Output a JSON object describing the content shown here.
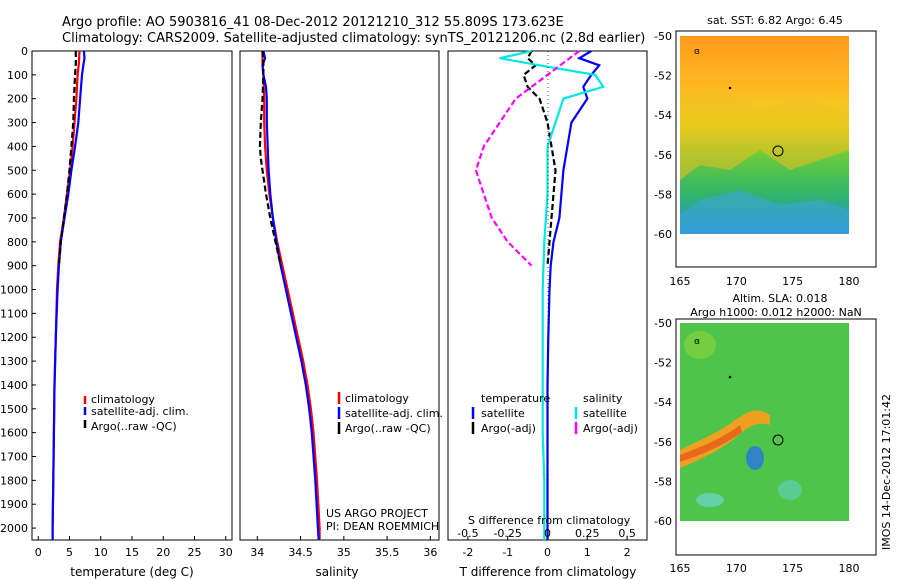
{
  "title": {
    "line1": "Argo profile: AO 5903816_41 08-Dec-2012 20121210_312 55.809S 173.623E",
    "line2": "Climatology: CARS2009. Satellite-adjusted climatology: synTS_20121206.nc (2.8d earlier)"
  },
  "credit": [
    "US ARGO PROJECT",
    "PI: DEAN ROEMMICH"
  ],
  "footer_stamp": "IMOS 14-Dec-2012 17:01:42",
  "colors": {
    "climatology": "#ff0000",
    "satellite": "#0000ff",
    "argo": "#000000",
    "sal_satellite": "#00e5e5",
    "sal_argo": "#ff00ff"
  },
  "chart_data": [
    {
      "type": "line",
      "xlabel": "temperature (deg C)",
      "ylabel": "",
      "xlim": [
        -1,
        31
      ],
      "ylim": [
        2050,
        0
      ],
      "xticks": [
        "0",
        "5",
        "10",
        "15",
        "20",
        "25",
        "30"
      ],
      "yticks": [
        "0",
        "100",
        "200",
        "300",
        "400",
        "500",
        "600",
        "700",
        "800",
        "900",
        "1000",
        "1100",
        "1200",
        "1300",
        "1400",
        "1500",
        "1600",
        "1700",
        "1800",
        "1900",
        "2000"
      ],
      "legend_position": "lower-center",
      "series": [
        {
          "name": "climatology",
          "style": "solid",
          "depth": [
            0,
            50,
            100,
            200,
            300,
            400,
            500,
            600,
            700,
            800,
            900,
            1000,
            1200,
            1400,
            1600,
            1800,
            2000,
            2050
          ],
          "values": [
            6.6,
            6.5,
            6.3,
            6.1,
            5.8,
            5.5,
            5.1,
            4.6,
            4.1,
            3.5,
            3.2,
            3.0,
            2.8,
            2.6,
            2.5,
            2.4,
            2.3,
            2.3
          ]
        },
        {
          "name": "satellite-adj. clim.",
          "style": "solid",
          "depth": [
            0,
            30,
            60,
            100,
            200,
            300,
            400,
            500,
            600,
            700,
            800,
            900,
            1000,
            1200,
            1400,
            1600,
            1800,
            2000,
            2050
          ],
          "values": [
            7.3,
            7.4,
            7.2,
            7.0,
            6.7,
            6.4,
            5.9,
            5.3,
            4.8,
            4.2,
            3.6,
            3.3,
            3.1,
            2.8,
            2.6,
            2.5,
            2.4,
            2.3,
            2.3
          ]
        },
        {
          "name": "Argo(..raw -QC)",
          "style": "dashed",
          "depth": [
            0,
            50,
            100,
            200,
            300,
            400,
            500,
            600,
            700,
            800,
            900
          ],
          "values": [
            6.0,
            6.0,
            5.9,
            5.7,
            5.6,
            5.3,
            5.0,
            4.6,
            4.1,
            3.6,
            3.3
          ]
        }
      ]
    },
    {
      "type": "line",
      "xlabel": "salinity",
      "xlim": [
        33.8,
        36.1
      ],
      "ylim": [
        2050,
        0
      ],
      "xticks": [
        "34",
        "34.5",
        "35",
        "35.5",
        "36"
      ],
      "legend_position": "lower-center",
      "series": [
        {
          "name": "climatology",
          "style": "solid",
          "depth": [
            0,
            50,
            100,
            200,
            300,
            400,
            500,
            600,
            700,
            800,
            900,
            1000,
            1100,
            1200,
            1300,
            1400,
            1500,
            1600,
            1800,
            2000,
            2050
          ],
          "values": [
            34.06,
            34.06,
            34.07,
            34.08,
            34.08,
            34.09,
            34.11,
            34.14,
            34.18,
            34.23,
            34.29,
            34.35,
            34.41,
            34.47,
            34.53,
            34.58,
            34.62,
            34.65,
            34.69,
            34.72,
            34.72
          ]
        },
        {
          "name": "satellite-adj. clim.",
          "style": "solid",
          "depth": [
            0,
            30,
            60,
            100,
            150,
            200,
            300,
            400,
            500,
            600,
            700,
            800,
            900,
            1000,
            1100,
            1200,
            1300,
            1400,
            1500,
            1600,
            1800,
            2000,
            2050
          ],
          "values": [
            34.07,
            34.09,
            34.06,
            34.07,
            34.1,
            34.11,
            34.11,
            34.12,
            34.13,
            34.15,
            34.18,
            34.22,
            34.27,
            34.33,
            34.39,
            34.45,
            34.51,
            34.56,
            34.6,
            34.63,
            34.67,
            34.7,
            34.71
          ]
        },
        {
          "name": "Argo(..raw -QC)",
          "style": "dashed",
          "depth": [
            0,
            50,
            100,
            200,
            300,
            400,
            450,
            500,
            600,
            700,
            800,
            900
          ],
          "values": [
            34.06,
            34.07,
            34.07,
            34.06,
            34.04,
            34.03,
            34.04,
            34.06,
            34.1,
            34.15,
            34.21,
            34.27
          ]
        }
      ]
    },
    {
      "type": "line",
      "xlabel": "T difference from climatology",
      "xlabel_secondary": "S difference from climatology",
      "xlim": [
        -2.5,
        2.5
      ],
      "ylim": [
        2050,
        0
      ],
      "xticks": [
        "-2",
        "-1",
        "0",
        "1",
        "2"
      ],
      "xticks_secondary": [
        "-0.5",
        "-0.25",
        "0",
        "0.25",
        "0.5"
      ],
      "legend_position": "lower-center",
      "legend": {
        "temperature": "temperature",
        "salinity": "salinity",
        "sat_t": "satellite",
        "argo_t": "Argo(-adj)",
        "sat_s": "satellite",
        "argo_s": "Argo(-adj)"
      },
      "series": [
        {
          "name": "temperature satellite",
          "style": "solid",
          "depth": [
            0,
            30,
            60,
            100,
            150,
            200,
            300,
            400,
            500,
            600,
            700,
            800,
            900,
            1000,
            1200,
            1400,
            1600,
            1800,
            2000,
            2050
          ],
          "values": [
            1.1,
            0.8,
            1.3,
            1.1,
            0.9,
            1.0,
            0.6,
            0.5,
            0.4,
            0.35,
            0.3,
            0.15,
            0.08,
            0.05,
            0.02,
            0.0,
            0.0,
            0.0,
            0.0,
            0.0
          ]
        },
        {
          "name": "temperature Argo(-adj)",
          "style": "dashed",
          "depth": [
            0,
            30,
            60,
            100,
            150,
            200,
            250,
            300,
            400,
            500,
            600,
            700,
            800,
            900
          ],
          "values": [
            -0.4,
            -0.5,
            -0.3,
            -0.6,
            -0.5,
            -0.2,
            -0.1,
            0.0,
            0.1,
            0.2,
            0.15,
            0.1,
            0.05,
            0.0
          ]
        },
        {
          "name": "salinity satellite",
          "style": "solid",
          "depth": [
            0,
            30,
            60,
            100,
            150,
            200,
            300,
            400,
            600,
            800,
            1000,
            1200,
            1400,
            1600,
            1800,
            2000,
            2050
          ],
          "values": [
            -0.1,
            -0.3,
            -0.05,
            0.3,
            0.35,
            0.1,
            0.05,
            0.0,
            0.0,
            -0.02,
            -0.03,
            -0.03,
            -0.03,
            -0.03,
            -0.02,
            -0.02,
            -0.02
          ]
        },
        {
          "name": "salinity Argo(-adj)",
          "style": "dashed",
          "depth": [
            0,
            50,
            100,
            200,
            300,
            400,
            500,
            600,
            700,
            800,
            900
          ],
          "values": [
            0.2,
            0.1,
            0.0,
            -0.2,
            -0.3,
            -0.4,
            -0.45,
            -0.4,
            -0.35,
            -0.25,
            -0.1
          ]
        }
      ]
    },
    {
      "type": "heatmap",
      "title": "sat. SST: 6.82 Argo: 6.45",
      "xlim": [
        164.5,
        181.5
      ],
      "ylim": [
        -61.2,
        -49.7
      ],
      "xticks": [
        "165",
        "170",
        "175",
        "180"
      ],
      "yticks": [
        "-50",
        "-52",
        "-54",
        "-56",
        "-58",
        "-60"
      ],
      "float_position": {
        "lon": 173.623,
        "lat": -55.809
      }
    },
    {
      "type": "heatmap",
      "title": "Altim. SLA: 0.018",
      "subtitle": "Argo h1000: 0.012 h2000: NaN",
      "xlim": [
        164.5,
        181.5
      ],
      "ylim": [
        -61.2,
        -49.7
      ],
      "xticks": [
        "165",
        "170",
        "175",
        "180"
      ],
      "yticks": [
        "-50",
        "-52",
        "-54",
        "-56",
        "-58",
        "-60"
      ],
      "float_position": {
        "lon": 173.623,
        "lat": -55.809
      }
    }
  ]
}
